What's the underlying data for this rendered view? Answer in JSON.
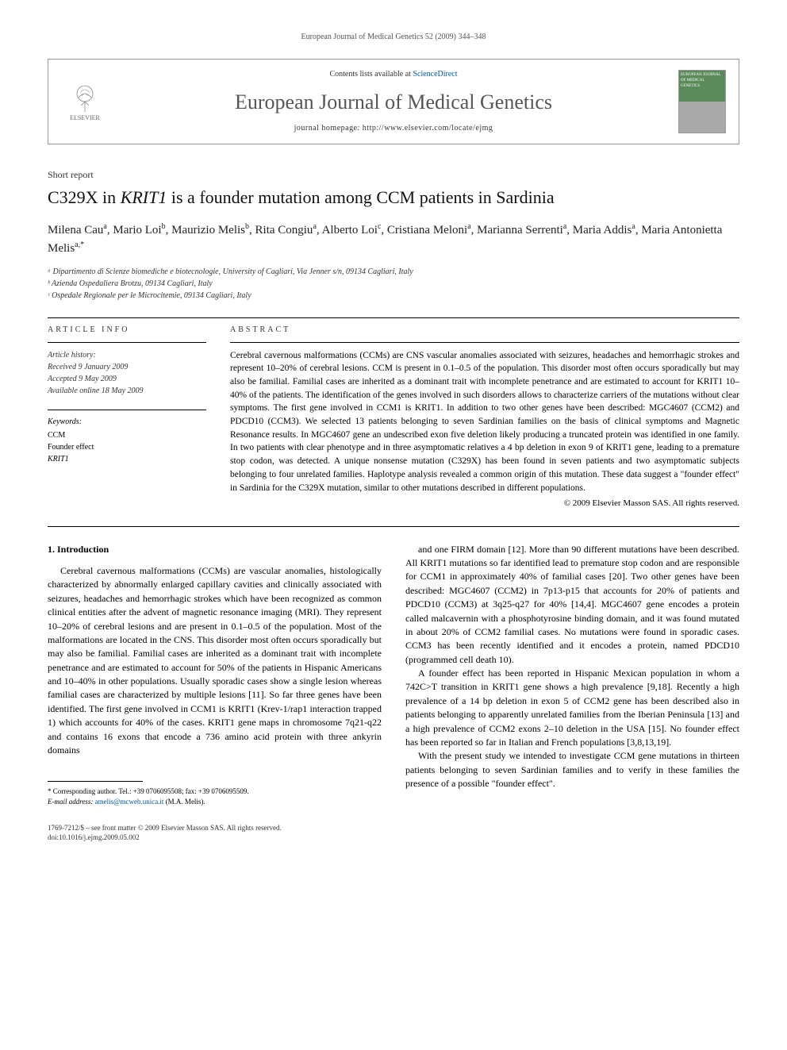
{
  "header": {
    "running_head": "European Journal of Medical Genetics 52 (2009) 344–348"
  },
  "journal_box": {
    "publisher": "ELSEVIER",
    "contents_prefix": "Contents lists available at ",
    "contents_link": "ScienceDirect",
    "journal_name": "European Journal of Medical Genetics",
    "homepage_label": "journal homepage: ",
    "homepage_url": "http://www.elsevier.com/locate/ejmg",
    "cover_text": "EUROPEAN JOURNAL OF MEDICAL GENETICS"
  },
  "article": {
    "type": "Short report",
    "title_pre": "C329X in ",
    "title_italic": "KRIT1",
    "title_post": " is a founder mutation among CCM patients in Sardinia",
    "authors_html": "Milena Cau<sup>a</sup>, Mario Loi<sup>b</sup>, Maurizio Melis<sup>b</sup>, Rita Congiu<sup>a</sup>, Alberto Loi<sup>c</sup>, Cristiana Meloni<sup>a</sup>, Marianna Serrenti<sup>a</sup>, Maria Addis<sup>a</sup>, Maria Antonietta Melis<sup>a,*</sup>",
    "affiliations": [
      "ᵃ Dipartimento di Scienze biomediche e biotecnologie, University of Cagliari, Via Jenner s/n, 09134 Cagliari, Italy",
      "ᵇ Azienda Ospedaliera Brotzu, 09134 Cagliari, Italy",
      "ᶜ Ospedale Regionale per le Microcitemie, 09134 Cagliari, Italy"
    ]
  },
  "article_info": {
    "label": "ARTICLE INFO",
    "history_label": "Article history:",
    "history": [
      "Received 9 January 2009",
      "Accepted 9 May 2009",
      "Available online 18 May 2009"
    ],
    "keywords_label": "Keywords:",
    "keywords": [
      "CCM",
      "Founder effect",
      "KRIT1"
    ]
  },
  "abstract": {
    "label": "ABSTRACT",
    "text": "Cerebral cavernous malformations (CCMs) are CNS vascular anomalies associated with seizures, headaches and hemorrhagic strokes and represent 10–20% of cerebral lesions. CCM is present in 0.1–0.5 of the population. This disorder most often occurs sporadically but may also be familial. Familial cases are inherited as a dominant trait with incomplete penetrance and are estimated to account for KRIT1 10–40% of the patients. The identification of the genes involved in such disorders allows to characterize carriers of the mutations without clear symptoms. The first gene involved in CCM1 is KRIT1. In addition to two other genes have been described: MGC4607 (CCM2) and PDCD10 (CCM3). We selected 13 patients belonging to seven Sardinian families on the basis of clinical symptoms and Magnetic Resonance results. In MGC4607 gene an undescribed exon five deletion likely producing a truncated protein was identified in one family. In two patients with clear phenotype and in three asymptomatic relatives a 4 bp deletion in exon 9 of KRIT1 gene, leading to a premature stop codon, was detected. A unique nonsense mutation (C329X) has been found in seven patients and two asymptomatic subjects belonging to four unrelated families. Haplotype analysis revealed a common origin of this mutation. These data suggest a \"founder effect\" in Sardinia for the C329X mutation, similar to other mutations described in different populations.",
    "copyright": "© 2009 Elsevier Masson SAS. All rights reserved."
  },
  "body": {
    "section1_heading": "1. Introduction",
    "col1_p1": "Cerebral cavernous malformations (CCMs) are vascular anomalies, histologically characterized by abnormally enlarged capillary cavities and clinically associated with seizures, headaches and hemorrhagic strokes which have been recognized as common clinical entities after the advent of magnetic resonance imaging (MRI). They represent 10–20% of cerebral lesions and are present in 0.1–0.5 of the population. Most of the malformations are located in the CNS. This disorder most often occurs sporadically but may also be familial. Familial cases are inherited as a dominant trait with incomplete penetrance and are estimated to account for 50% of the patients in Hispanic Americans and 10–40% in other populations. Usually sporadic cases show a single lesion whereas familial cases are characterized by multiple lesions [11]. So far three genes have been identified. The first gene involved in CCM1 is KRIT1 (Krev-1/rap1 interaction trapped 1) which accounts for 40% of the cases. KRIT1 gene maps in chromosome 7q21-q22 and contains 16 exons that encode a 736 amino acid protein with three ankyrin domains",
    "col2_p1": "and one FIRM domain [12]. More than 90 different mutations have been described. All KRIT1 mutations so far identified lead to premature stop codon and are responsible for CCM1 in approximately 40% of familial cases [20]. Two other genes have been described: MGC4607 (CCM2) in 7p13-p15 that accounts for 20% of patients and PDCD10 (CCM3) at 3q25-q27 for 40% [14,4]. MGC4607 gene encodes a protein called malcavernin with a phosphotyrosine binding domain, and it was found mutated in about 20% of CCM2 familial cases. No mutations were found in sporadic cases. CCM3 has been recently identified and it encodes a protein, named PDCD10 (programmed cell death 10).",
    "col2_p2": "A founder effect has been reported in Hispanic Mexican population in whom a 742C>T transition in KRIT1 gene shows a high prevalence [9,18]. Recently a high prevalence of a 14 bp deletion in exon 5 of CCM2 gene has been described also in patients belonging to apparently unrelated families from the Iberian Peninsula [13] and a high prevalence of CCM2 exons 2–10 deletion in the USA [15]. No founder effect has been reported so far in Italian and French populations [3,8,13,19].",
    "col2_p3": "With the present study we intended to investigate CCM gene mutations in thirteen patients belonging to seven Sardinian families and to verify in these families the presence of a possible \"founder effect\"."
  },
  "footnote": {
    "corresponding": "* Corresponding author. Tel.: +39 0706095508; fax: +39 0706095509.",
    "email_label": "E-mail address: ",
    "email": "amelis@mcweb.unica.it",
    "email_suffix": " (M.A. Melis)."
  },
  "footer": {
    "issn": "1769-7212/$ – see front matter © 2009 Elsevier Masson SAS. All rights reserved.",
    "doi": "doi:10.1016/j.ejmg.2009.05.002"
  },
  "colors": {
    "link": "#0056a3",
    "text": "#000000",
    "muted": "#555555"
  }
}
